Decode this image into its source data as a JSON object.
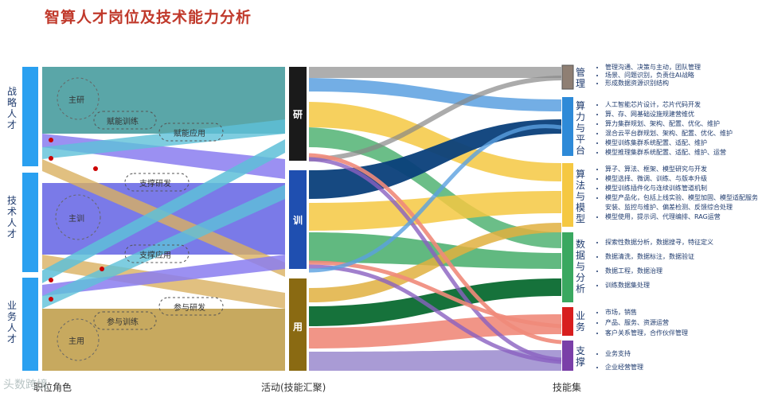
{
  "title": "智算人才岗位及技术能力分析",
  "roles": [
    {
      "label": "战略人才",
      "color": "#2196f3"
    },
    {
      "label": "技术人才",
      "color": "#2196f3"
    },
    {
      "label": "业务人才",
      "color": "#2196f3"
    }
  ],
  "role_zones": [
    "主研",
    "主训",
    "主用"
  ],
  "flow_labels": [
    "赋能训练",
    "赋能应用",
    "支撑研发",
    "支撑应用",
    "参与研发",
    "参与训练"
  ],
  "activities": [
    {
      "label": "研",
      "color": "#1a1a1a"
    },
    {
      "label": "训",
      "color": "#1f4fb0"
    },
    {
      "label": "用",
      "color": "#8a6a12"
    }
  ],
  "skill_groups": [
    {
      "label": "管理",
      "color": "#8f7f73",
      "items": [
        "管理沟通、决策与主动，团队管理",
        "场景、问题识别，负责住AI战略",
        "形成数据资源识别结构"
      ]
    },
    {
      "label": "算力与平台",
      "color": "#2e8ad8",
      "items": [
        "人工智能芯片设计，芯片代码开发",
        "算、存、网基础设施规建营维优",
        "算力集群规划、架构、配置、优化、维护",
        "混合云平台群规划、架构、配置、优化、维护",
        "模型训练集群系统配置、适配、维护",
        "模型推理集群系统配置、适配、维护、运营"
      ]
    },
    {
      "label": "算法与模型",
      "color": "#f5c842",
      "items": [
        "算子、算法、框架、模型研究与开发",
        "模型选择、微调、训练、与版本升级",
        "模型训练插件化与连续训练管道机制",
        "模型产品化，包括上线实验、模型加固、模型适配服务安装、监控与维护、偏差检测、反馈综合处理",
        "模型使用，提示词、代理编排、RAG运营"
      ]
    },
    {
      "label": "数据与分析",
      "color": "#3aa860",
      "items": [
        "探索性数据分析，数据搜寻，特征定义",
        "数据清洗，数据标注，数据验证",
        "数据工程，数据治理",
        "训练数据集处理"
      ]
    },
    {
      "label": "业务",
      "color": "#d81e1e",
      "items": [
        "市场，销售",
        "产品、服务、资源运营",
        "客户关系管理，合作伙伴管理"
      ]
    },
    {
      "label": "支撑",
      "color": "#7a3fa8",
      "items": [
        "业务支持",
        "企业经营管理"
      ]
    }
  ],
  "columns": {
    "left": "职位角色",
    "middle": "活动(技能汇聚)",
    "right": "技能集"
  },
  "watermark": "头数跨境"
}
